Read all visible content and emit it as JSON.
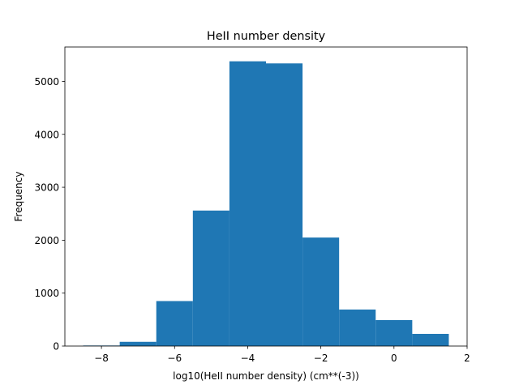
{
  "chart_data": {
    "type": "bar",
    "title": "HeII number density",
    "xlabel": "log10(HeII number density) (cm**(-3))",
    "ylabel": "Frequency",
    "xlim": [
      -9.0,
      2.0
    ],
    "ylim": [
      0,
      5650
    ],
    "xticks": [
      -8,
      -6,
      -4,
      -2,
      0,
      2
    ],
    "yticks": [
      0,
      1000,
      2000,
      3000,
      4000,
      5000
    ],
    "bin_edges": [
      -8.5,
      -7.5,
      -6.5,
      -5.5,
      -4.5,
      -3.5,
      -2.5,
      -1.5,
      -0.5,
      0.5,
      1.5
    ],
    "values": [
      10,
      80,
      850,
      2560,
      5380,
      5340,
      2050,
      690,
      490,
      230
    ],
    "color": "#1f77b4",
    "grid": false
  }
}
